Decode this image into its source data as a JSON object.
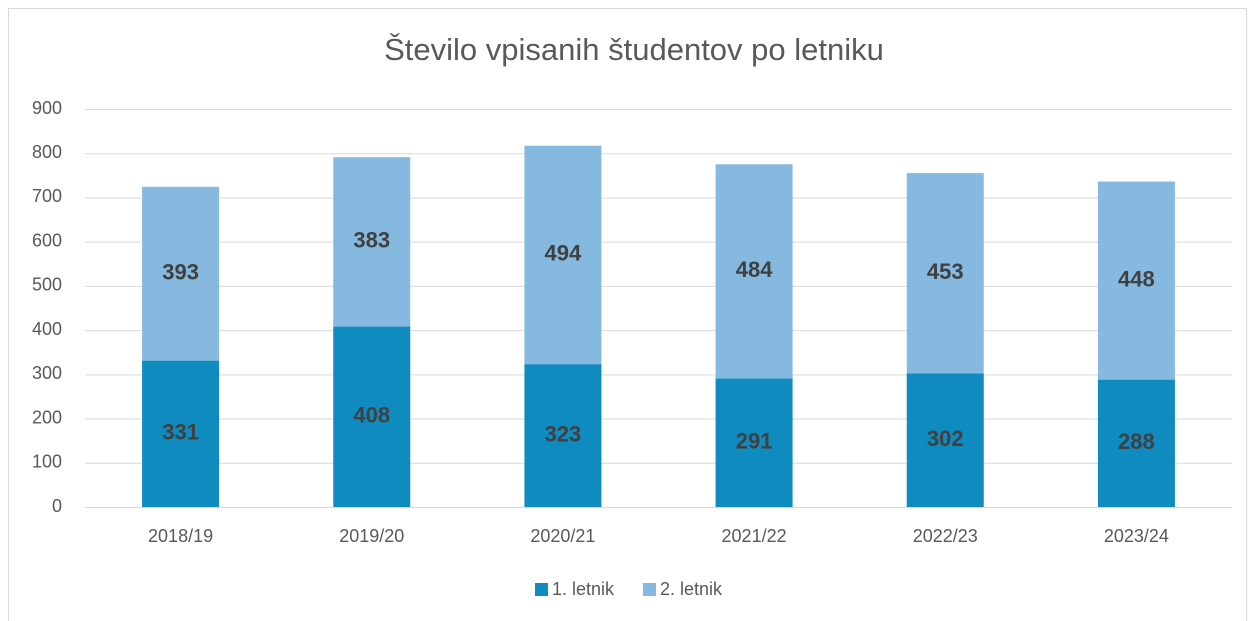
{
  "chart_data": {
    "type": "bar",
    "stacked": true,
    "title": "Število vpisanih študentov po letniku",
    "categories": [
      "2018/19",
      "2019/20",
      "2020/21",
      "2021/22",
      "2022/23",
      "2023/24"
    ],
    "series": [
      {
        "name": "1. letnik",
        "color": "#0f8bc0",
        "values": [
          331,
          408,
          323,
          291,
          302,
          288
        ]
      },
      {
        "name": "2. letnik",
        "color": "#86b9e0",
        "values": [
          393,
          383,
          494,
          484,
          453,
          448
        ]
      }
    ],
    "ylim": [
      0,
      900
    ],
    "yticks": [
      0,
      100,
      200,
      300,
      400,
      500,
      600,
      700,
      800,
      900
    ],
    "grid": true,
    "legend": "bottom"
  }
}
